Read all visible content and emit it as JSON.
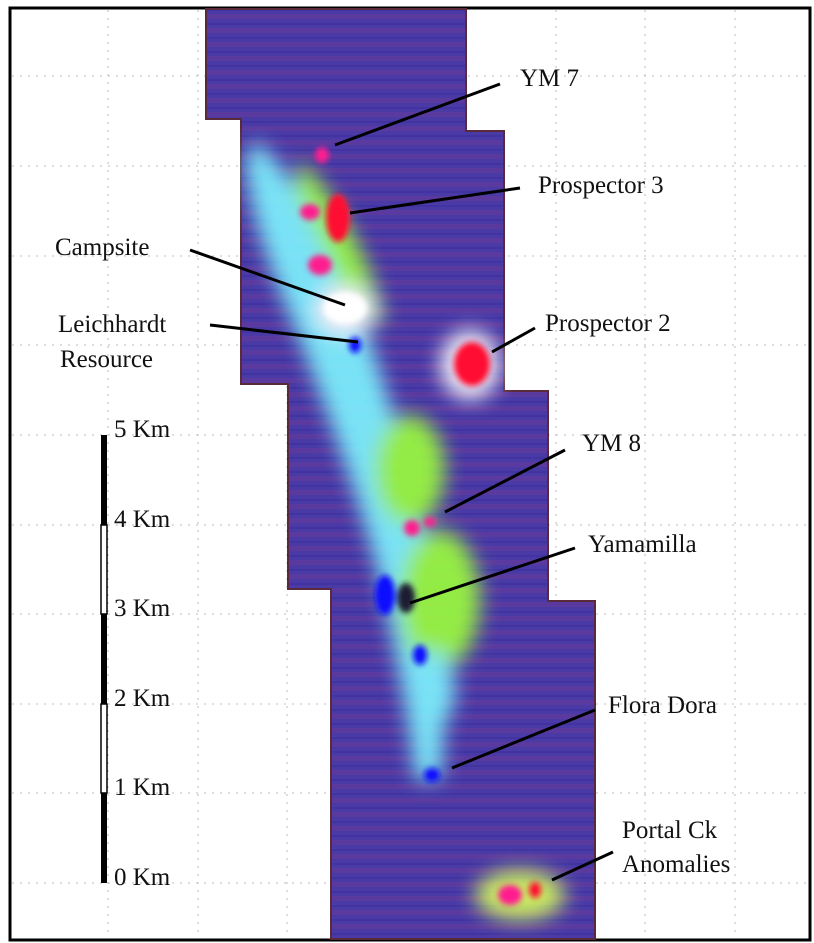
{
  "labels": {
    "ym7": "YM 7",
    "prospector3": "Prospector 3",
    "campsite": "Campsite",
    "leichhardt_line1": "Leichhardt",
    "leichhardt_line2": "Resource",
    "prospector2": "Prospector 2",
    "ym8": "YM 8",
    "yamamilla": "Yamamilla",
    "flora_dora": "Flora Dora",
    "portal_line1": "Portal Ck",
    "portal_line2": "Anomalies"
  },
  "scale_bar": {
    "ticks": [
      "5 Km",
      "4 Km",
      "3 Km",
      "2 Km",
      "1 Km",
      "0 Km"
    ]
  },
  "colors": {
    "background_strip": "#4a3aa6",
    "anomaly_green": "#9cff3a",
    "anomaly_cyan": "#7ff5ff",
    "anomaly_magenta": "#ff1f8f",
    "anomaly_red": "#ff1030",
    "anomaly_blue": "#1010ff",
    "anomaly_white": "#ffffff",
    "frame_border": "#000000",
    "leader_line": "#000000"
  }
}
